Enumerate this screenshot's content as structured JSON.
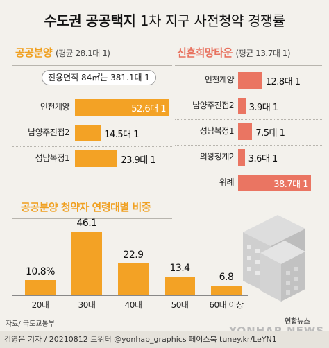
{
  "title_bold": "수도권 공공택지",
  "title_rest": "1차 지구 사전청약 경쟁률",
  "public": {
    "title": "공공분양",
    "avg": "(평균 28.1대 1)",
    "callout": "전용면적 84㎡는 381.1대 1",
    "unit": "대 1",
    "rows": [
      {
        "label": "인천계양",
        "value": 52.6
      },
      {
        "label": "남양주진접2",
        "value": 14.5
      },
      {
        "label": "성남복정1",
        "value": 23.9
      }
    ]
  },
  "newlywed": {
    "title": "신혼희망타운",
    "avg": "(평균 13.7대 1)",
    "unit": "대 1",
    "rows": [
      {
        "label": "인천계양",
        "value": 12.8
      },
      {
        "label": "남양주진접2",
        "value": 3.9
      },
      {
        "label": "성남복정1",
        "value": 7.5
      },
      {
        "label": "의왕청계2",
        "value": 3.6
      },
      {
        "label": "위례",
        "value": 38.7
      }
    ]
  },
  "age": {
    "title": "공공분양 청약자 연령대별 비중",
    "rows": [
      {
        "label": "20대",
        "value": 10.8,
        "display": "10.8%"
      },
      {
        "label": "30대",
        "value": 46.1,
        "display": "46.1"
      },
      {
        "label": "40대",
        "value": 22.9,
        "display": "22.9"
      },
      {
        "label": "50대",
        "value": 13.4,
        "display": "13.4"
      },
      {
        "label": "60대 이상",
        "value": 6.8,
        "display": "6.8"
      }
    ]
  },
  "chart_data": [
    {
      "type": "bar",
      "title": "공공분양 (평균 28.1대 1)",
      "categories": [
        "인천계양",
        "남양주진접2",
        "성남복정1"
      ],
      "values": [
        52.6,
        14.5,
        23.9
      ],
      "annotations": [
        "전용면적 84㎡는 381.1대 1"
      ]
    },
    {
      "type": "bar",
      "title": "신혼희망타운 (평균 13.7대 1)",
      "categories": [
        "인천계양",
        "남양주진접2",
        "성남복정1",
        "의왕청계2",
        "위례"
      ],
      "values": [
        12.8,
        3.9,
        7.5,
        3.6,
        38.7
      ]
    },
    {
      "type": "bar",
      "title": "공공분양 청약자 연령대별 비중",
      "categories": [
        "20대",
        "30대",
        "40대",
        "50대",
        "60대 이상"
      ],
      "values": [
        10.8,
        46.1,
        22.9,
        13.4,
        6.8
      ]
    }
  ],
  "colors": {
    "public": "#f3a225",
    "newlywed": "#ea7562",
    "background": "#f3f1ec"
  },
  "footer": {
    "source": "자료/ 국토교통부",
    "credit": "김영은 기자 / 20210812  트위터 @yonhap_graphics  페이스북 tuney.kr/LeYN1",
    "logo": "연합뉴스",
    "logo2": "YONHAP NEWS"
  }
}
